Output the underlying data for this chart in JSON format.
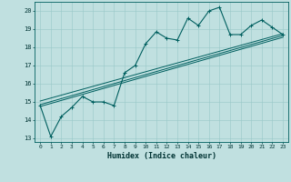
{
  "xlabel": "Humidex (Indice chaleur)",
  "ylabel": "",
  "bg_color": "#c0e0e0",
  "line_color": "#005f5f",
  "grid_color": "#98c8c8",
  "xlim": [
    -0.5,
    23.5
  ],
  "ylim": [
    12.8,
    20.5
  ],
  "xticks": [
    0,
    1,
    2,
    3,
    4,
    5,
    6,
    7,
    8,
    9,
    10,
    11,
    12,
    13,
    14,
    15,
    16,
    17,
    18,
    19,
    20,
    21,
    22,
    23
  ],
  "yticks": [
    13,
    14,
    15,
    16,
    17,
    18,
    19,
    20
  ],
  "main_data_x": [
    0,
    1,
    2,
    3,
    4,
    5,
    6,
    7,
    8,
    9,
    10,
    11,
    12,
    13,
    14,
    15,
    16,
    17,
    18,
    19,
    20,
    21,
    22,
    23
  ],
  "main_data_y": [
    14.8,
    13.1,
    14.2,
    14.7,
    15.3,
    15.0,
    15.0,
    14.8,
    16.6,
    17.0,
    18.2,
    18.85,
    18.5,
    18.4,
    19.6,
    19.2,
    20.0,
    20.2,
    18.7,
    18.7,
    19.2,
    19.5,
    19.1,
    18.7
  ],
  "trend_lines": [
    {
      "x0": 0,
      "y0": 14.75,
      "x1": 23,
      "y1": 18.55
    },
    {
      "x0": 0,
      "y0": 14.85,
      "x1": 23,
      "y1": 18.65
    },
    {
      "x0": 0,
      "y0": 15.05,
      "x1": 23,
      "y1": 18.75
    }
  ]
}
